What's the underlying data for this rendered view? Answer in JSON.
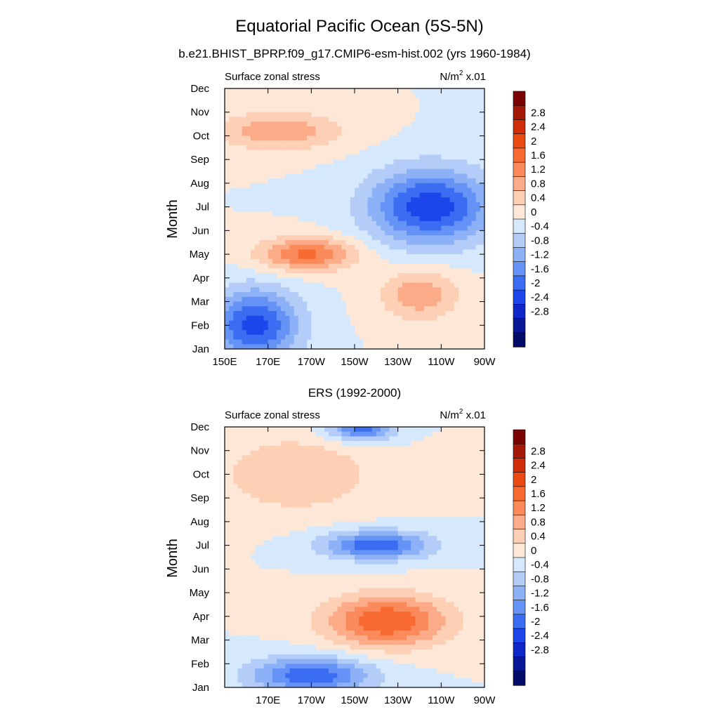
{
  "figure": {
    "title": "Equatorial Pacific Ocean (5S-5N)",
    "subtitle": "b.e21.BHIST_BPRP.f09_g17.CMIP6-esm-hist.002 (yrs 1960-1984)"
  },
  "colorbar": {
    "labels": [
      "2.8",
      "2.4",
      "2",
      "1.6",
      "1.2",
      "0.8",
      "0.4",
      "0",
      "-0.4",
      "-0.8",
      "-1.2",
      "-1.6",
      "-2",
      "-2.4",
      "-2.8"
    ],
    "colors_top_to_bottom": [
      "#7a0403",
      "#a51a06",
      "#cf2e08",
      "#ea4b12",
      "#f96a31",
      "#fa8a5a",
      "#fbab87",
      "#fdd0b5",
      "#fde8d8",
      "#d6e8fb",
      "#b4cdf8",
      "#8db1f7",
      "#6592f5",
      "#3b6df3",
      "#1c46ea",
      "#0f27c8",
      "#081896",
      "#040c6a"
    ]
  },
  "chart_data": [
    {
      "type": "heatmap",
      "panel_title": "",
      "left_label": "Surface zonal stress",
      "right_label_base": "N/m",
      "right_label_exp": "2",
      "right_label_tail": " x.01",
      "ylabel": "Month",
      "x_ticks": [
        "150E",
        "170E",
        "170W",
        "150W",
        "130W",
        "110W",
        "90W"
      ],
      "y_ticks": [
        "Jan",
        "Feb",
        "Mar",
        "Apr",
        "May",
        "Jun",
        "Jul",
        "Aug",
        "Sep",
        "Oct",
        "Nov",
        "Dec"
      ],
      "x_range": [
        150,
        270
      ],
      "y_range": [
        1,
        12
      ],
      "contour_levels": [
        -2.8,
        -2.4,
        -2,
        -1.6,
        -1.2,
        -0.8,
        -0.4,
        0,
        0.4,
        0.8,
        1.2,
        1.6,
        2,
        2.4,
        2.8
      ],
      "features": [
        {
          "type": "min",
          "x": 164,
          "y": 2.0,
          "value": -2.2,
          "sx": 20,
          "sy": 1.5,
          "rot": 0
        },
        {
          "type": "min",
          "x": 245,
          "y": 7.0,
          "value": -2.3,
          "sx": 28,
          "sy": 1.6,
          "rot": 0
        },
        {
          "type": "max",
          "x": 188,
          "y": 5.0,
          "value": 1.7,
          "sx": 22,
          "sy": 0.7,
          "rot": 0
        },
        {
          "type": "max",
          "x": 240,
          "y": 3.3,
          "value": 1.1,
          "sx": 18,
          "sy": 1.1,
          "rot": 0
        },
        {
          "type": "max",
          "x": 175,
          "y": 10.2,
          "value": 1.1,
          "sx": 30,
          "sy": 0.8,
          "rot": 0
        }
      ]
    },
    {
      "type": "heatmap",
      "panel_title": "ERS (1992-2000)",
      "left_label": "Surface zonal stress",
      "right_label_base": "N/m",
      "right_label_exp": "2",
      "right_label_tail": " x.01",
      "ylabel": "Month",
      "x_ticks": [
        "",
        "170E",
        "170W",
        "150W",
        "130W",
        "110W",
        "90W"
      ],
      "y_ticks": [
        "Jan",
        "Feb",
        "Mar",
        "Apr",
        "May",
        "Jun",
        "Jul",
        "Aug",
        "Sep",
        "Oct",
        "Nov",
        "Dec"
      ],
      "x_range": [
        150,
        270
      ],
      "y_range": [
        1,
        12
      ],
      "contour_levels": [
        -2.8,
        -2.4,
        -2,
        -1.6,
        -1.2,
        -0.8,
        -0.4,
        0,
        0.4,
        0.8,
        1.2,
        1.6,
        2,
        2.4,
        2.8
      ],
      "features": [
        {
          "type": "min",
          "x": 190,
          "y": 1.5,
          "value": -1.9,
          "sx": 28,
          "sy": 0.8,
          "rot": 0
        },
        {
          "type": "min",
          "x": 220,
          "y": 7.0,
          "value": -1.9,
          "sx": 25,
          "sy": 0.6,
          "rot": 0
        },
        {
          "type": "min",
          "x": 213,
          "y": 11.9,
          "value": -1.8,
          "sx": 15,
          "sy": 0.5,
          "rot": 0
        },
        {
          "type": "max",
          "x": 225,
          "y": 3.8,
          "value": 2.0,
          "sx": 28,
          "sy": 1.1,
          "rot": 0
        },
        {
          "type": "max",
          "x": 183,
          "y": 10.0,
          "value": 0.8,
          "sx": 35,
          "sy": 1.6,
          "rot": 0
        }
      ]
    }
  ]
}
